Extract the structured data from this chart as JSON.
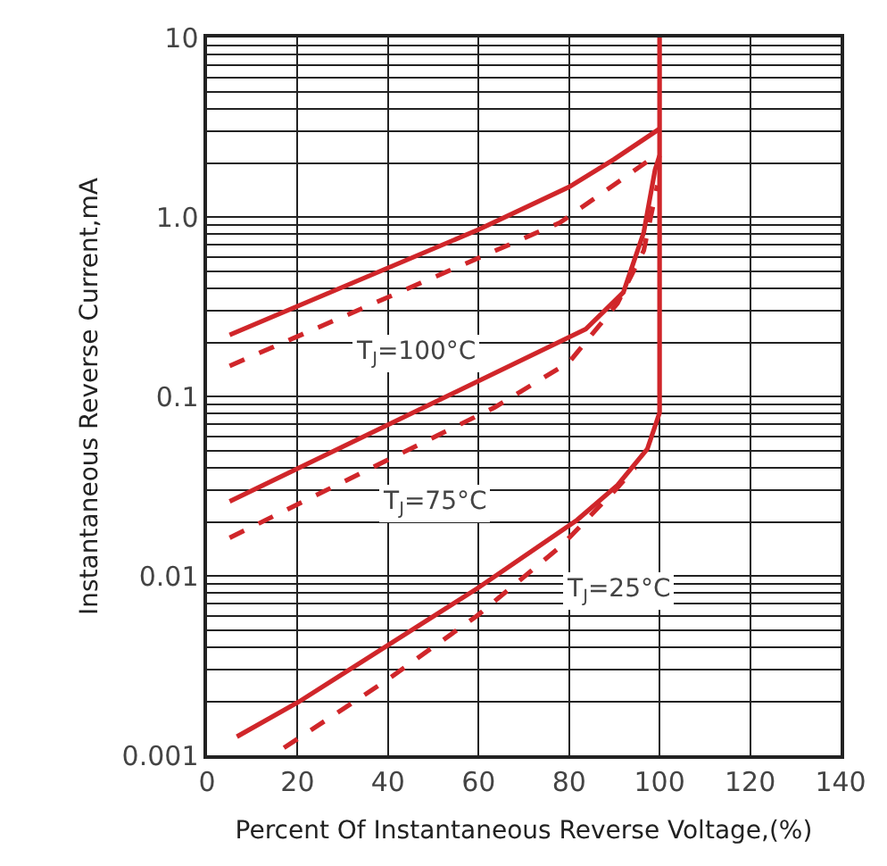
{
  "chart_data": {
    "type": "line",
    "xlabel": "Percent Of Instantaneous Reverse Voltage,(%)",
    "ylabel": "Instantaneous Reverse Current,mA",
    "log": "y",
    "grid": true,
    "marker": "none",
    "xlim": [
      0,
      140
    ],
    "xticks": [
      0,
      20,
      40,
      60,
      80,
      100,
      120,
      140
    ],
    "ylim": [
      0.001,
      10
    ],
    "yticks": [
      0.001,
      0.01,
      0.1,
      {
        "value": 1,
        "label": "1.0"
      },
      10
    ],
    "series": [
      {
        "color": "#d0262a",
        "line_style": "solid",
        "x": [
          5,
          60,
          80,
          90,
          100
        ],
        "values": [
          0.22,
          0.85,
          1.47,
          2.1,
          3.1
        ]
      },
      {
        "color": "#d0262a",
        "line_style": "dashed",
        "x": [
          5,
          78,
          98.5,
          100
        ],
        "values": [
          0.148,
          0.93,
          2.14,
          2.3
        ]
      },
      {
        "color": "#d0262a",
        "line_style": "solid",
        "x": [
          5,
          83.7,
          92,
          96.5,
          99,
          100
        ],
        "values": [
          0.026,
          0.237,
          0.38,
          0.82,
          1.83,
          2.2
        ]
      },
      {
        "color": "#d0262a",
        "line_style": "dashed",
        "x": [
          5,
          63.6,
          80,
          90.7,
          96.5,
          99.5
        ],
        "values": [
          0.0163,
          0.087,
          0.155,
          0.33,
          0.65,
          1.5
        ]
      },
      {
        "color": "#d0262a",
        "line_style": "solid",
        "x": [
          6.6,
          20.2,
          59.7,
          81.8,
          90.7,
          97.3,
          100,
          100
        ],
        "values": [
          0.00127,
          0.00198,
          0.0085,
          0.0205,
          0.032,
          0.051,
          0.081,
          10
        ]
      },
      {
        "color": "#d0262a",
        "line_style": "dashed",
        "x": [
          17,
          39.5,
          59.7,
          78.3,
          90.7,
          94.6
        ],
        "values": [
          0.0011,
          0.0026,
          0.006,
          0.0147,
          0.031,
          0.04
        ]
      }
    ],
    "annotations": [
      "T$_{J}$=100°C",
      "T$_{J}$=75°C",
      "T$_{J}$=25°C"
    ]
  }
}
